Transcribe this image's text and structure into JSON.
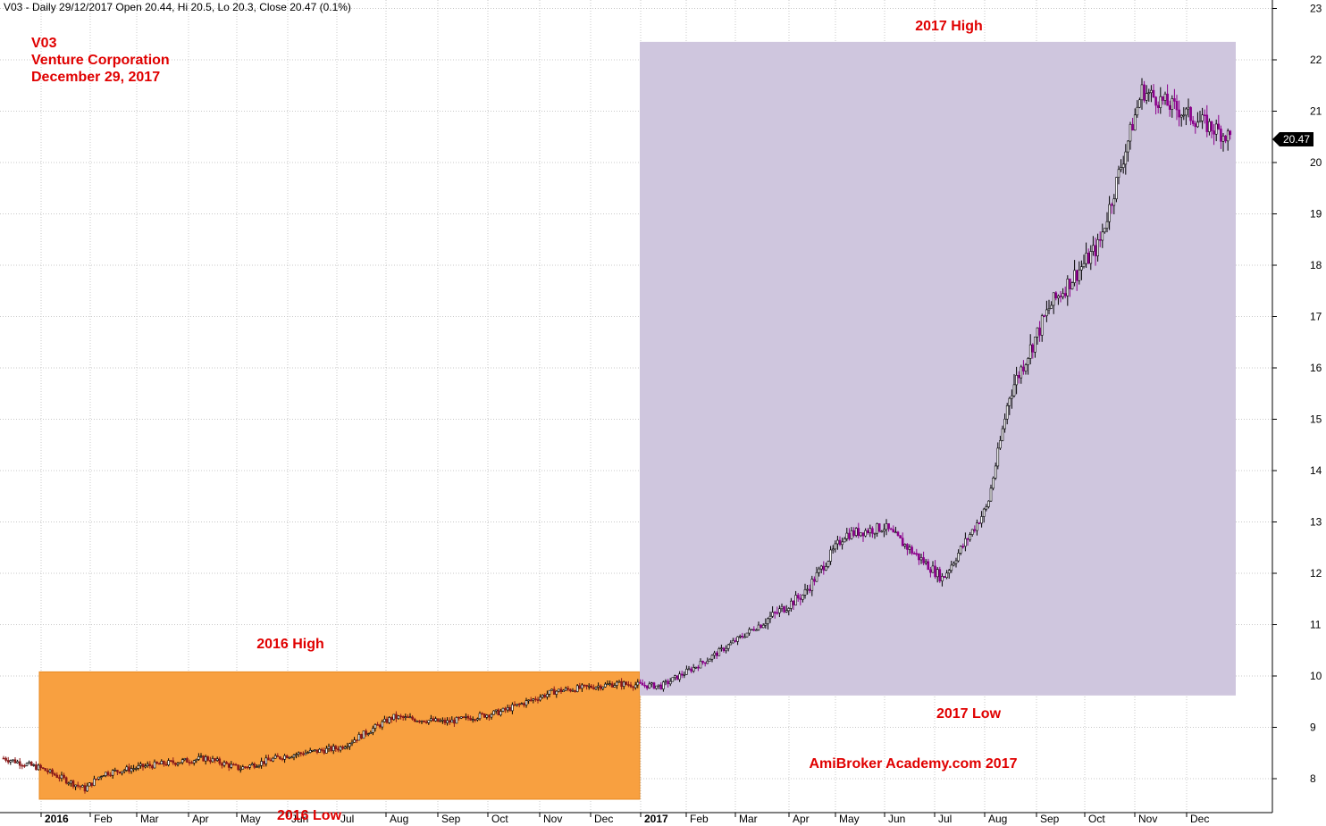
{
  "header": {
    "text": "V03 - Daily 29/12/2017 Open 20.44, Hi 20.5, Lo 20.3, Close 20.47 (0.1%)"
  },
  "title_block": {
    "line1": "V03",
    "line2": "Venture Corporation",
    "line3": "December 29, 2017"
  },
  "annotations": {
    "high_2016": "2016 High",
    "low_2016": "2016 Low",
    "high_2017": "2017 High",
    "low_2017": "2017 Low",
    "watermark": "AmiBroker Academy.com  2017"
  },
  "price_label": "20.47",
  "colors": {
    "box_2016": "#f8a040",
    "box_2017": "#cfc6de",
    "annotation": "#e00000",
    "candle_up": "#000000",
    "candle_down": "#8b008b",
    "candle_down_2016": "#8b1a1a",
    "grid": "#c8c8c8"
  },
  "chart_data": {
    "type": "candlestick",
    "title": "V03 - Daily 29/12/2017 Open 20.44, Hi 20.5, Lo 20.3, Close 20.47 (0.1%)",
    "y_ticks": [
      8,
      9,
      10,
      11,
      12,
      13,
      14,
      15,
      16,
      17,
      18,
      19,
      20,
      21,
      22,
      23
    ],
    "ylim": [
      7.3,
      23.1
    ],
    "x_ticks": [
      "2016",
      "Feb",
      "Mar",
      "Apr",
      "May",
      "Jun",
      "Jul",
      "Aug",
      "Sep",
      "Oct",
      "Nov",
      "Dec",
      "2017",
      "Feb",
      "Mar",
      "Apr",
      "May",
      "Jun",
      "Jul",
      "Aug",
      "Sep",
      "Oct",
      "Nov",
      "Dec"
    ],
    "last_close": 20.47,
    "highlight_boxes": [
      {
        "label_top": "2016 High",
        "label_bottom": "2016 Low",
        "high": 10.08,
        "low": 7.6
      },
      {
        "label_top": "2017 High",
        "label_bottom": "2017 Low",
        "high": 22.35,
        "low": 9.62
      }
    ],
    "series": [
      {
        "name": "",
        "x": [
          "2015-12",
          "2016-01",
          "2016-01 late",
          "2016-02",
          "2016-03",
          "2016-04",
          "2016-05",
          "2016-06",
          "2016-07",
          "2016-08",
          "2016-09",
          "2016-10",
          "2016-11",
          "2016-12",
          "2017-01",
          "2017-02",
          "2017-03",
          "2017-04",
          "2017-05",
          "2017-06",
          "2017-07",
          "2017-08",
          "2017-08 mid",
          "2017-09",
          "2017-10",
          "2017-11",
          "2017-12"
        ],
        "values": [
          8.4,
          8.2,
          7.8,
          8.1,
          8.25,
          8.4,
          8.2,
          8.45,
          8.6,
          9.2,
          9.1,
          9.3,
          9.7,
          9.85,
          9.8,
          10.3,
          11.0,
          11.6,
          12.75,
          12.9,
          11.9,
          13.3,
          15.5,
          17.2,
          18.4,
          21.4,
          20.47
        ]
      }
    ]
  }
}
